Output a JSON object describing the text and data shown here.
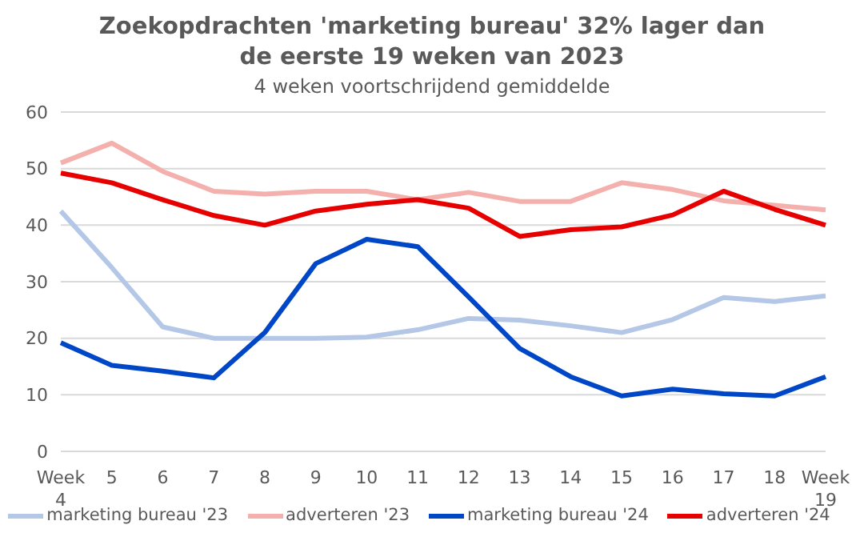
{
  "chart_data": {
    "type": "line",
    "title": "Zoekopdrachten 'marketing bureau' 32% lager dan de eerste 19 weken van 2023",
    "subtitle": "4 weken voortschrijdend gemiddelde",
    "categories": [
      "Week 4",
      "5",
      "6",
      "7",
      "8",
      "9",
      "10",
      "11",
      "12",
      "13",
      "14",
      "15",
      "16",
      "17",
      "18",
      "Week 19"
    ],
    "series": [
      {
        "name": "marketing bureau '23",
        "color": "#b4c7e7",
        "values": [
          42.5,
          32.5,
          22,
          20,
          20,
          20,
          20.2,
          21.5,
          23.5,
          23.2,
          22.2,
          21,
          23.3,
          27.2,
          26.5,
          27.5
        ]
      },
      {
        "name": "adverteren '23",
        "color": "#f4b0ac",
        "values": [
          51,
          54.5,
          49.5,
          46,
          45.5,
          46,
          46,
          44.5,
          45.8,
          44.2,
          44.2,
          47.5,
          46.3,
          44.3,
          43.5,
          42.7
        ]
      },
      {
        "name": "marketing bureau '24",
        "color": "#0047c8",
        "values": [
          19.2,
          15.2,
          14.2,
          13,
          21,
          33.2,
          37.5,
          36.2,
          27.3,
          18.2,
          13.2,
          9.8,
          11,
          10.2,
          9.8,
          13.2
        ]
      },
      {
        "name": "adverteren '24",
        "color": "#e60000",
        "values": [
          49.2,
          47.5,
          44.5,
          41.7,
          40,
          42.5,
          43.7,
          44.5,
          43,
          38,
          39.2,
          39.7,
          41.8,
          46,
          42.8,
          40
        ]
      }
    ],
    "ylim": [
      0,
      60
    ],
    "yticks": [
      0,
      10,
      20,
      30,
      40,
      50,
      60
    ],
    "grid": "y",
    "legend": "bottom",
    "marker": "none",
    "line_style": "solid"
  }
}
